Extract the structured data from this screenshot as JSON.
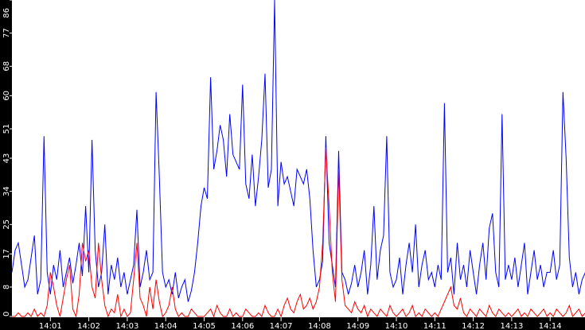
{
  "chart_data": {
    "type": "line",
    "title": "",
    "xlabel": "",
    "ylabel": "",
    "ylim": [
      0,
      86
    ],
    "y_ticks": [
      "0",
      "8",
      "17",
      "25",
      "34",
      "43",
      "51",
      "60",
      "68",
      "77",
      "86"
    ],
    "x_ticks": [
      "14:01",
      "14:02",
      "14:03",
      "14:04",
      "14:05",
      "14:06",
      "14:07",
      "14:08",
      "14:09",
      "14:10",
      "14:11",
      "14:12",
      "14:13",
      "14:14"
    ],
    "x_range": [
      "14:00:00",
      "14:14:55"
    ],
    "sample_step_seconds": 5,
    "grid": false,
    "background": "#ffffff",
    "axis_background": "#000000",
    "series": [
      {
        "color": "#0000ff",
        "values": [
          12,
          18,
          20,
          14,
          8,
          10,
          16,
          22,
          6,
          10,
          49,
          12,
          6,
          14,
          10,
          18,
          8,
          12,
          16,
          9,
          14,
          20,
          11,
          30,
          12,
          48,
          18,
          8,
          12,
          25,
          6,
          14,
          10,
          16,
          8,
          12,
          6,
          10,
          14,
          29,
          8,
          12,
          18,
          10,
          12,
          61,
          38,
          12,
          8,
          10,
          6,
          12,
          5,
          8,
          10,
          4,
          7,
          12,
          20,
          30,
          35,
          32,
          65,
          40,
          45,
          52,
          48,
          38,
          55,
          44,
          42,
          40,
          63,
          36,
          32,
          44,
          30,
          38,
          48,
          66,
          35,
          40,
          86,
          30,
          42,
          36,
          38,
          34,
          30,
          40,
          38,
          36,
          40,
          32,
          18,
          8,
          10,
          15,
          49,
          20,
          14,
          8,
          45,
          12,
          10,
          6,
          9,
          14,
          8,
          12,
          18,
          6,
          14,
          30,
          10,
          18,
          22,
          49,
          12,
          8,
          10,
          16,
          6,
          14,
          20,
          12,
          25,
          8,
          14,
          18,
          10,
          12,
          8,
          14,
          10,
          58,
          12,
          16,
          6,
          20,
          10,
          14,
          8,
          18,
          12,
          6,
          14,
          20,
          10,
          24,
          28,
          12,
          8,
          55,
          10,
          14,
          10,
          16,
          8,
          14,
          20,
          6,
          12,
          18,
          10,
          14,
          8,
          12,
          12,
          18,
          10,
          14,
          61,
          43,
          16,
          8,
          12,
          6,
          10,
          12
        ]
      },
      {
        "color": "#ff0000",
        "values": [
          0,
          0,
          1,
          0,
          0,
          1,
          0,
          2,
          0,
          1,
          0,
          3,
          12,
          8,
          3,
          0,
          5,
          10,
          14,
          2,
          0,
          6,
          20,
          15,
          18,
          8,
          5,
          20,
          10,
          3,
          0,
          2,
          1,
          6,
          0,
          2,
          0,
          1,
          10,
          20,
          5,
          3,
          0,
          8,
          2,
          10,
          4,
          0,
          1,
          3,
          8,
          2,
          0,
          1,
          0,
          0,
          2,
          1,
          0,
          0,
          0,
          1,
          2,
          0,
          3,
          1,
          0,
          0,
          2,
          0,
          1,
          0,
          0,
          2,
          1,
          0,
          0,
          1,
          0,
          3,
          1,
          0,
          0,
          2,
          0,
          3,
          5,
          2,
          1,
          4,
          6,
          2,
          3,
          5,
          2,
          4,
          8,
          20,
          46,
          30,
          12,
          4,
          40,
          10,
          3,
          2,
          1,
          4,
          2,
          1,
          3,
          0,
          2,
          1,
          0,
          2,
          1,
          0,
          3,
          1,
          0,
          1,
          2,
          0,
          1,
          3,
          0,
          1,
          0,
          2,
          1,
          0,
          1,
          0,
          2,
          4,
          6,
          8,
          3,
          2,
          5,
          1,
          0,
          2,
          1,
          0,
          2,
          1,
          0,
          3,
          1,
          0,
          2,
          1,
          0,
          1,
          0,
          1,
          2,
          0,
          1,
          0,
          2,
          1,
          0,
          1,
          2,
          0,
          1,
          0,
          2,
          1,
          0,
          1,
          3,
          0,
          1,
          2,
          0,
          1
        ]
      }
    ]
  }
}
